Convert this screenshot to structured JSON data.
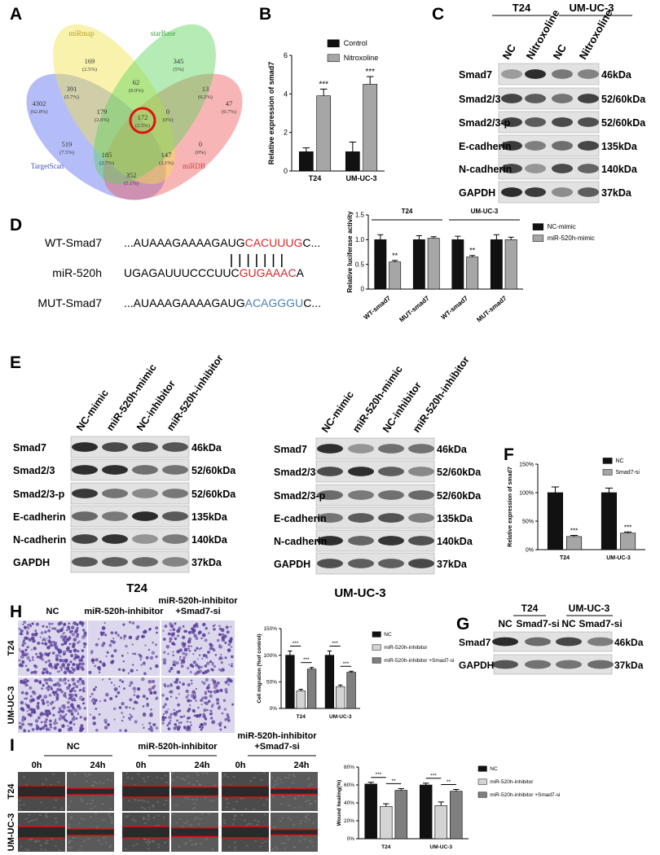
{
  "panels": [
    "A",
    "B",
    "C",
    "D",
    "E",
    "F",
    "G",
    "H",
    "I"
  ],
  "venn": {
    "sets": [
      "miRmap",
      "starBase",
      "TargetScan",
      "miRDB"
    ],
    "regions": [
      {
        "count": 169,
        "percent": "(2.5%)"
      },
      {
        "count": 345,
        "percent": "(5%)"
      },
      {
        "count": 391,
        "percent": "(5.7%)"
      },
      {
        "count": 62,
        "percent": "(0.9%)"
      },
      {
        "count": 13,
        "percent": "(0.2%)"
      },
      {
        "count": 4302,
        "percent": "(62.8%)"
      },
      {
        "count": 179,
        "percent": "(2.6%)"
      },
      {
        "count": 0,
        "percent": "(0%)"
      },
      {
        "count": 47,
        "percent": "(0.7%)"
      },
      {
        "count": 172,
        "percent": "(2.5%)"
      },
      {
        "count": 519,
        "percent": "(7.5%)"
      },
      {
        "count": 0,
        "percent": "(0%)"
      },
      {
        "count": 185,
        "percent": "(2.7%)"
      },
      {
        "count": 147,
        "percent": "(2.1%)"
      },
      {
        "count": 352,
        "percent": "(5.1%)"
      }
    ]
  },
  "blot_c": {
    "groups": [
      "T24",
      "UM-UC-3"
    ],
    "lanes": [
      "NC",
      "Nitroxoline",
      "NC",
      "Nitroxoline"
    ],
    "rows": [
      {
        "protein": "Smad7",
        "size": "46kDa"
      },
      {
        "protein": "Smad2/3",
        "size": "52/60kDa"
      },
      {
        "protein": "Smad2/3-p",
        "size": "52/60kDa"
      },
      {
        "protein": "E-cadherin",
        "size": "135kDa"
      },
      {
        "protein": "N-cadherin",
        "size": "140kDa"
      },
      {
        "protein": "GAPDH",
        "size": "37kDa"
      }
    ]
  },
  "sequences": [
    {
      "name": "WT-Smad7",
      "parts": [
        "...AUAAAGAAAAGAUG",
        "CACUUUG",
        "C..."
      ],
      "color": "#d62728"
    },
    {
      "name": "miR-520h",
      "parts": [
        "UGAGAUUUCCCUUC",
        "GUGAAAC",
        "A"
      ],
      "color": "#d62728"
    },
    {
      "name": "MUT-Smad7",
      "parts": [
        "...AUAAAGAAAAGAUG",
        "ACAGGGU",
        "C..."
      ],
      "color": "#4a7ebb"
    }
  ],
  "blots_e": [
    {
      "lanes": [
        "NC-mimic",
        "miR-520h-mimic",
        "NC-inhibitor",
        "miR-520h-inhibitor"
      ],
      "rows": [
        {
          "protein": "Smad7",
          "size": "46kDa"
        },
        {
          "protein": "Smad2/3",
          "size": "52/60kDa"
        },
        {
          "protein": "Smad2/3-p",
          "size": "52/60kDa"
        },
        {
          "protein": "E-cadherin",
          "size": "135kDa"
        },
        {
          "protein": "N-cadherin",
          "size": "140kDa"
        },
        {
          "protein": "GAPDH",
          "size": "37kDa"
        }
      ]
    },
    {
      "lanes": [
        "NC-mimic",
        "miR-520h-mimic",
        "NC-inhibitor",
        "miR-520h-inhibitor"
      ],
      "rows": [
        {
          "protein": "Smad7",
          "size": "46kDa"
        },
        {
          "protein": "Smad2/3",
          "size": "52/60kDa"
        },
        {
          "protein": "Smad2/3-p",
          "size": "52/60kDa"
        },
        {
          "protein": "E-cadherin",
          "size": "135kDa"
        },
        {
          "protein": "N-cadherin",
          "size": "140kDa"
        },
        {
          "protein": "GAPDH",
          "size": "37kDa"
        }
      ]
    }
  ],
  "blot_g": {
    "groups": [
      "T24",
      "UM-UC-3"
    ],
    "lanes": [
      "NC",
      "Smad7-si",
      "NC",
      "Smad7-si"
    ],
    "rows": [
      {
        "protein": "Smad7",
        "size": "46kDa"
      },
      {
        "protein": "GAPDH",
        "size": "37kDa"
      }
    ]
  },
  "migration": {
    "titles": [
      "T24",
      "UM-UC-3"
    ],
    "columns": [
      [
        "NC"
      ],
      [
        "miR-520h-inhibitor"
      ],
      [
        "miR-520h-inhibitor",
        "+Smad7-si"
      ]
    ],
    "rows": [
      "T24",
      "UM-UC-3"
    ]
  },
  "wound": {
    "columns": [
      [
        "NC"
      ],
      [
        "miR-520h-inhibitor"
      ],
      [
        "miR-520h-inhibitor",
        "+Smad7-si"
      ]
    ],
    "times": [
      "0h",
      "24h"
    ],
    "rows": [
      "T24",
      "UM-UC-3"
    ]
  },
  "chart_data": [
    {
      "type": "bar",
      "y_label": "Relative expression of smad7",
      "categories": [
        "T24",
        "UM-UC-3"
      ],
      "ylim": [
        0,
        6
      ],
      "yticks": [
        0,
        2,
        4,
        6
      ],
      "brackets": false,
      "series": [
        {
          "name": "Control",
          "color": "#111111",
          "values": [
            1,
            1
          ],
          "errors": [
            0.2,
            0.5
          ]
        },
        {
          "name": "Nitroxoline",
          "color": "#a6a6a6",
          "values": [
            3.9,
            4.5
          ],
          "errors": [
            0.35,
            0.4
          ],
          "annotations": [
            "***",
            "***"
          ]
        }
      ]
    },
    {
      "type": "bar",
      "y_label": "Relative luciferase activity",
      "categories": [
        "WT-smad7",
        "MUT-smad7",
        "WT-smad7",
        "MUT-smad7"
      ],
      "groups": [
        "T24",
        "UM-UC-3"
      ],
      "ylim": [
        0,
        1.5
      ],
      "yticks": [
        0,
        0.5,
        {
          "value": 1,
          "label": "1.0"
        },
        1.5
      ],
      "brackets": false,
      "series": [
        {
          "name": "NC-mimic",
          "color": "#111111",
          "values": [
            1,
            1,
            1,
            1
          ],
          "errors": [
            0.1,
            0.08,
            0.07,
            0.1
          ]
        },
        {
          "name": "miR-520h-mimic",
          "color": "#a6a6a6",
          "values": [
            0.55,
            1.03,
            0.65,
            1
          ],
          "errors": [
            0.03,
            0.03,
            0.03,
            0.05
          ],
          "annotations": [
            "**",
            null,
            "**",
            null
          ]
        }
      ]
    },
    {
      "type": "bar",
      "y_label": "Relative expression of smad7",
      "categories": [
        "T24",
        "UM-UC-3"
      ],
      "ylim": [
        0,
        150
      ],
      "yticks": [
        {
          "value": 0,
          "label": "0%"
        },
        {
          "value": 50,
          "label": "50%"
        },
        {
          "value": 100,
          "label": "100%"
        },
        {
          "value": 150,
          "label": "150%"
        }
      ],
      "brackets": false,
      "series": [
        {
          "name": "NC",
          "color": "#111111",
          "values": [
            100,
            100
          ],
          "errors": [
            10,
            8
          ]
        },
        {
          "name": "Smad7-si",
          "color": "#a6a6a6",
          "values": [
            23,
            29
          ],
          "errors": [
            2,
            2
          ],
          "annotations": [
            "***",
            "***"
          ]
        }
      ]
    },
    {
      "type": "bar",
      "y_label": "Cell migration (%of control)",
      "categories": [
        "T24",
        "UM-UC-3"
      ],
      "ylim": [
        0,
        150
      ],
      "yticks": [
        {
          "value": 0,
          "label": "0%"
        },
        {
          "value": 50,
          "label": "50%"
        },
        {
          "value": 100,
          "label": "100%"
        },
        {
          "value": 150,
          "label": "150%"
        }
      ],
      "brackets": true,
      "series": [
        {
          "name": "NC",
          "color": "#111111",
          "values": [
            100,
            100
          ],
          "errors": [
            8,
            8
          ]
        },
        {
          "name": "miR-520h-inhibitor",
          "color": "#d4d4d4",
          "values": [
            33,
            41
          ],
          "errors": [
            3,
            3
          ],
          "annotations": [
            "***",
            "***"
          ]
        },
        {
          "name": "miR-520h-inhibitor +Smad7-si",
          "color": "#7f7f7f",
          "values": [
            74,
            68
          ],
          "errors": [
            3,
            2
          ],
          "annotations": [
            "***",
            "***"
          ]
        }
      ]
    },
    {
      "type": "bar",
      "y_label": "Wound healing(%)",
      "categories": [
        "T24",
        "UM-UC-3"
      ],
      "ylim": [
        0,
        80
      ],
      "yticks": [
        {
          "value": 0,
          "label": "0%"
        },
        {
          "value": 20,
          "label": "20%"
        },
        {
          "value": 40,
          "label": "40%"
        },
        {
          "value": 60,
          "label": "60%"
        },
        {
          "value": 80,
          "label": "80%"
        }
      ],
      "brackets": true,
      "series": [
        {
          "name": "NC",
          "color": "#111111",
          "values": [
            61,
            60
          ],
          "errors": [
            2,
            2
          ]
        },
        {
          "name": "miR-520h-inhibitor",
          "color": "#d4d4d4",
          "values": [
            36,
            37
          ],
          "errors": [
            3,
            4
          ],
          "annotations": [
            "***",
            "***"
          ]
        },
        {
          "name": "miR-520h-inhibitor +Smad7-si",
          "color": "#7f7f7f",
          "values": [
            54,
            53
          ],
          "errors": [
            2,
            2
          ],
          "annotations": [
            "**",
            "**"
          ]
        }
      ]
    }
  ]
}
